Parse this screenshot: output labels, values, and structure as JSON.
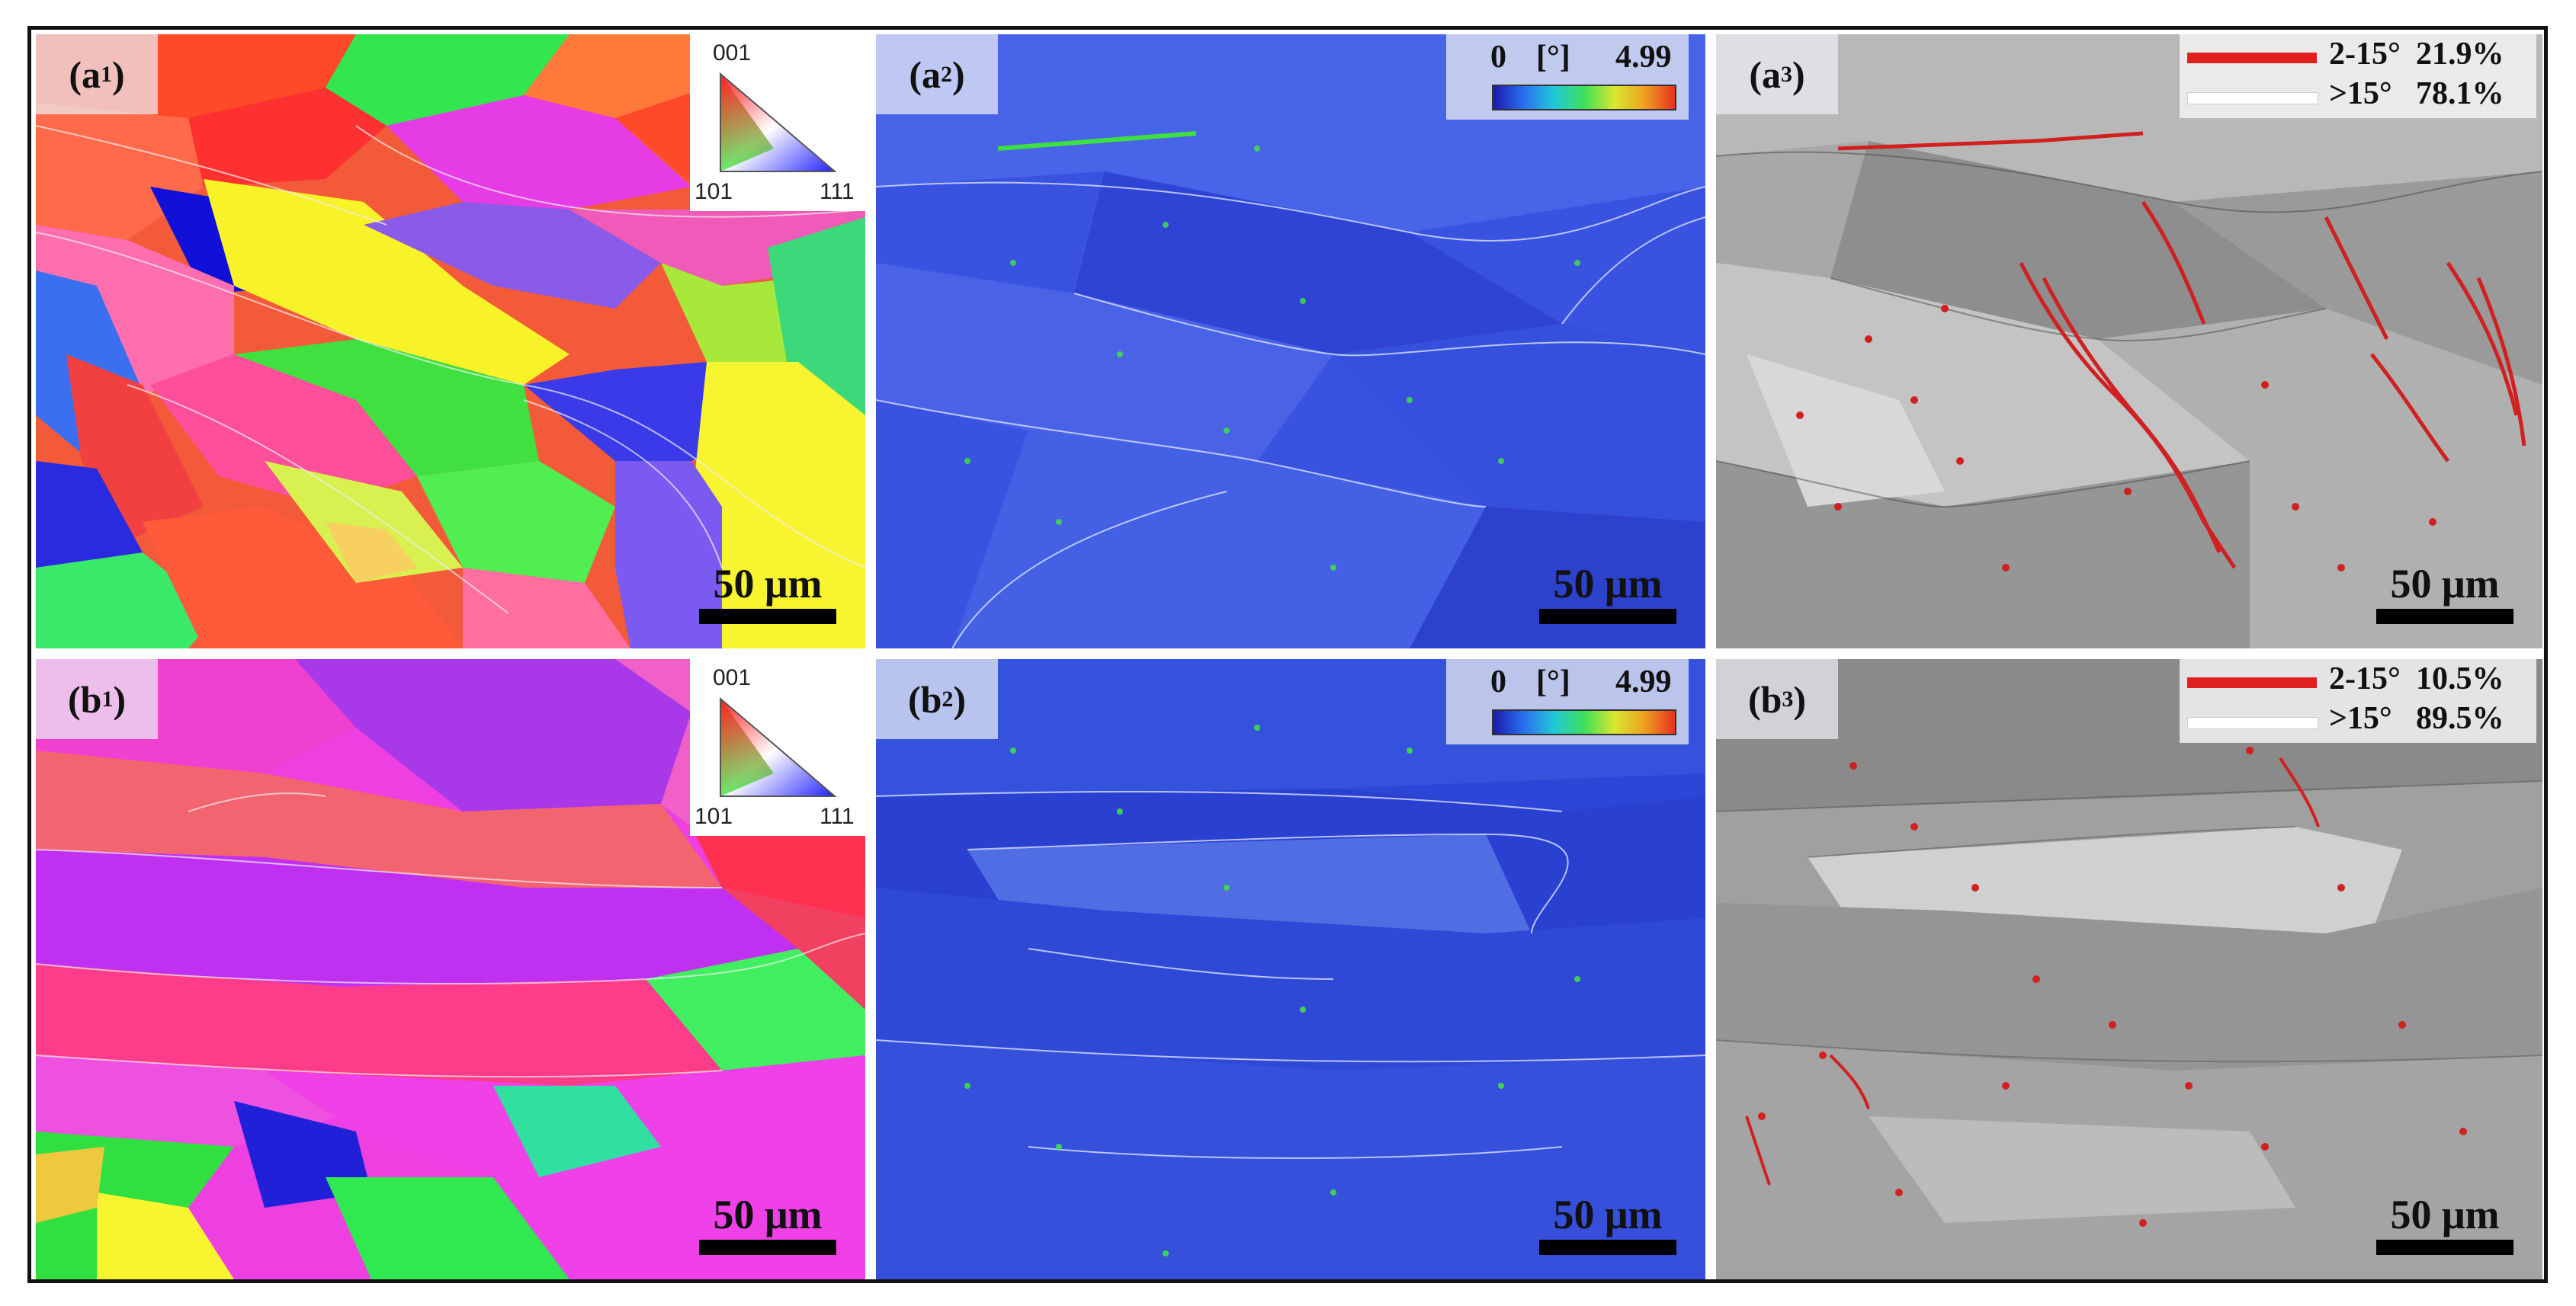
{
  "colors": {
    "frame": "#111111",
    "lagb": "#e02020",
    "hagb": "#ffffff",
    "kam_low": "#1a1aa8",
    "kam_high": "#e83020"
  },
  "panels": {
    "a1": {
      "label_main": "(a",
      "label_sub": "1",
      "label_close": ")",
      "scale": "50 μm",
      "ipf": {
        "top": "001",
        "left": "101",
        "right": "111"
      }
    },
    "a2": {
      "label_main": "(a",
      "label_sub": "2",
      "label_close": ")",
      "scale": "50 μm",
      "kam": {
        "min": "0",
        "unit": "[°]",
        "max": "4.99"
      }
    },
    "a3": {
      "label_main": "(a",
      "label_sub": "3",
      "label_close": ")",
      "scale": "50 μm",
      "gb": {
        "low_label": "2-15°",
        "low_pct": "21.9%",
        "high_label": ">15°",
        "high_pct": "78.1%"
      }
    },
    "b1": {
      "label_main": "(b",
      "label_sub": "1",
      "label_close": ")",
      "scale": "50 μm",
      "ipf": {
        "top": "001",
        "left": "101",
        "right": "111"
      }
    },
    "b2": {
      "label_main": "(b",
      "label_sub": "2",
      "label_close": ")",
      "scale": "50 μm",
      "kam": {
        "min": "0",
        "unit": "[°]",
        "max": "4.99"
      }
    },
    "b3": {
      "label_main": "(b",
      "label_sub": "3",
      "label_close": ")",
      "scale": "50 μm",
      "gb": {
        "low_label": "2-15°",
        "low_pct": "10.5%",
        "high_label": ">15°",
        "high_pct": "89.5%"
      }
    }
  }
}
